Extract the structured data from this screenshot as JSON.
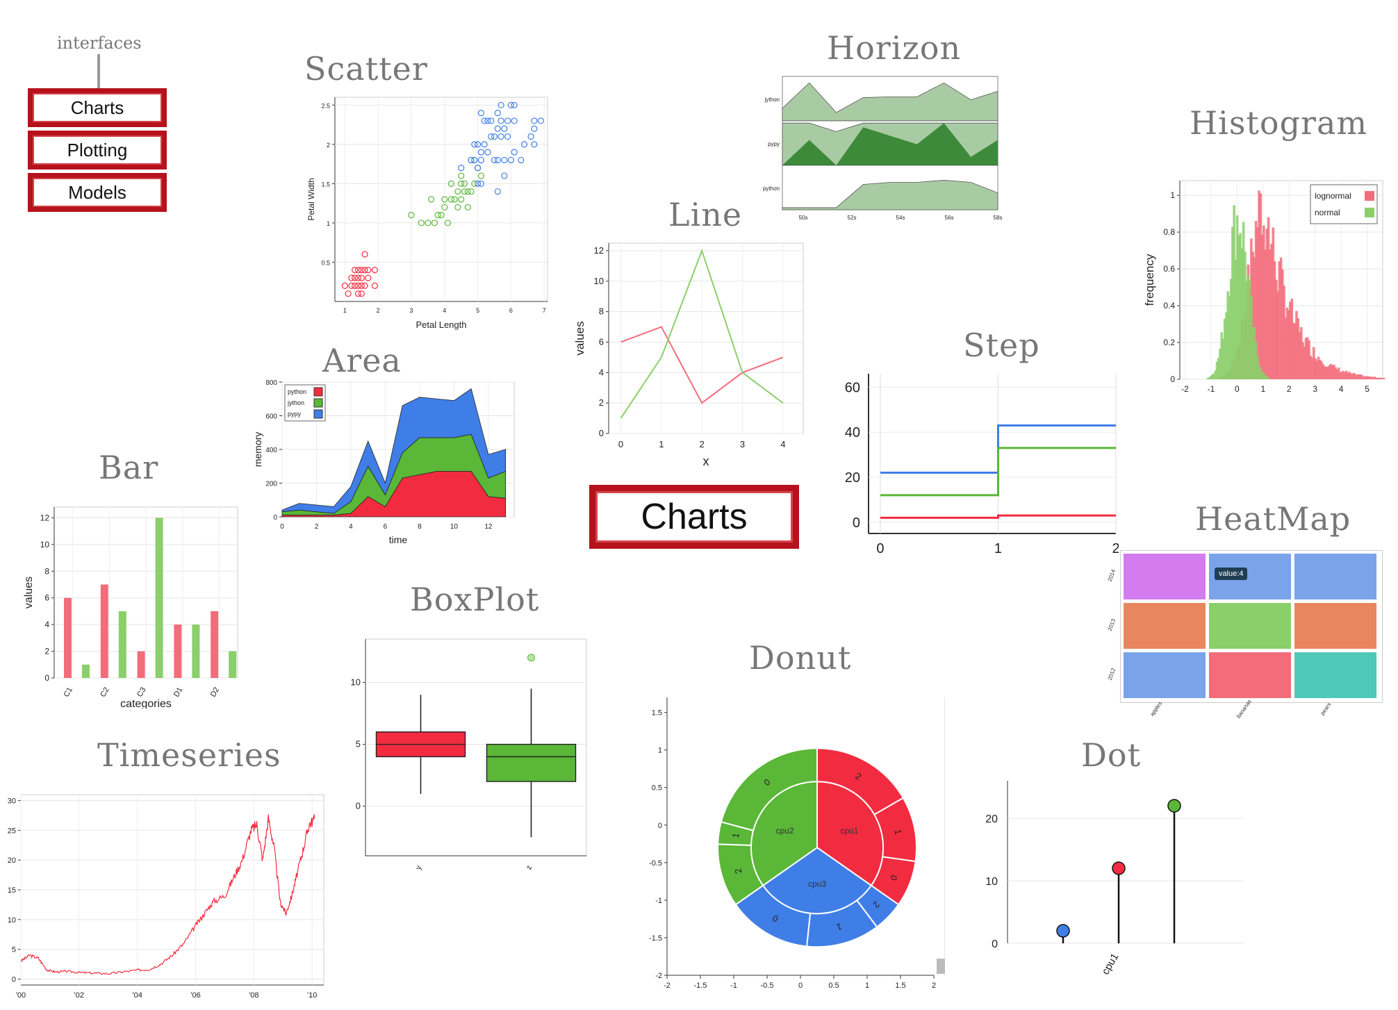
{
  "nav": {
    "label": "interfaces",
    "items": [
      "Charts",
      "Plotting",
      "Models"
    ]
  },
  "center_label": "Charts",
  "titles": {
    "scatter": "Scatter",
    "horizon": "Horizon",
    "histogram": "Histogram",
    "line": "Line",
    "area": "Area",
    "step": "Step",
    "bar": "Bar",
    "heatmap": "HeatMap",
    "boxplot": "BoxPlot",
    "donut": "Donut",
    "timeseries": "Timeseries",
    "dot": "Dot"
  },
  "colors": {
    "red": "#f22c40",
    "green": "#5ab738",
    "blue": "#407ee7",
    "brand": "#b5121b"
  },
  "chart_data": [
    {
      "id": "scatter",
      "type": "scatter",
      "xlabel": "Petal Length",
      "ylabel": "Petal Width",
      "xlim": [
        0.7,
        7.1
      ],
      "ylim": [
        0,
        2.6
      ],
      "xticks": [
        "1",
        "2",
        "3",
        "4",
        "5",
        "6",
        "7"
      ],
      "yticks": [
        "0.5",
        "1",
        "1.5",
        "2",
        "2.5"
      ],
      "series": [
        {
          "color": "#f22c40",
          "points": [
            [
              1.4,
              0.2
            ],
            [
              1.3,
              0.2
            ],
            [
              1.5,
              0.2
            ],
            [
              1.4,
              0.3
            ],
            [
              1.7,
              0.4
            ],
            [
              1.5,
              0.1
            ],
            [
              1.6,
              0.2
            ],
            [
              1.4,
              0.1
            ],
            [
              1.1,
              0.1
            ],
            [
              1.2,
              0.2
            ],
            [
              1.5,
              0.4
            ],
            [
              1.3,
              0.4
            ],
            [
              1.7,
              0.3
            ],
            [
              1.9,
              0.4
            ],
            [
              1.6,
              0.6
            ],
            [
              1.5,
              0.3
            ],
            [
              1.0,
              0.2
            ],
            [
              1.6,
              0.4
            ],
            [
              1.9,
              0.2
            ],
            [
              1.4,
              0.4
            ],
            [
              1.3,
              0.3
            ],
            [
              1.2,
              0.3
            ]
          ]
        },
        {
          "color": "#5ab738",
          "points": [
            [
              4.7,
              1.4
            ],
            [
              4.5,
              1.5
            ],
            [
              4.9,
              1.5
            ],
            [
              4.0,
              1.3
            ],
            [
              4.6,
              1.5
            ],
            [
              3.3,
              1.0
            ],
            [
              4.4,
              1.4
            ],
            [
              3.9,
              1.1
            ],
            [
              3.5,
              1.0
            ],
            [
              4.2,
              1.5
            ],
            [
              3.6,
              1.3
            ],
            [
              4.7,
              1.2
            ],
            [
              4.1,
              1.0
            ],
            [
              3.0,
              1.1
            ],
            [
              4.5,
              1.3
            ],
            [
              4.8,
              1.8
            ],
            [
              4.3,
              1.3
            ],
            [
              5.0,
              1.7
            ],
            [
              3.8,
              1.1
            ],
            [
              3.7,
              1.0
            ],
            [
              5.1,
              1.6
            ],
            [
              4.4,
              1.2
            ],
            [
              4.6,
              1.4
            ],
            [
              4.0,
              1.2
            ],
            [
              4.9,
              1.8
            ],
            [
              4.2,
              1.3
            ],
            [
              4.5,
              1.6
            ],
            [
              4.8,
              1.4
            ]
          ]
        },
        {
          "color": "#407ee7",
          "points": [
            [
              6.0,
              2.5
            ],
            [
              5.1,
              1.9
            ],
            [
              5.9,
              2.1
            ],
            [
              5.6,
              1.8
            ],
            [
              5.8,
              2.2
            ],
            [
              6.6,
              2.1
            ],
            [
              4.5,
              1.7
            ],
            [
              6.3,
              1.8
            ],
            [
              6.1,
              2.5
            ],
            [
              5.3,
              1.9
            ],
            [
              5.5,
              2.1
            ],
            [
              5.0,
              2.0
            ],
            [
              5.1,
              2.4
            ],
            [
              5.3,
              2.3
            ],
            [
              6.7,
              2.2
            ],
            [
              6.9,
              2.3
            ],
            [
              5.7,
              2.3
            ],
            [
              4.9,
              2.0
            ],
            [
              6.7,
              2.0
            ],
            [
              5.4,
              2.1
            ],
            [
              5.6,
              2.4
            ],
            [
              4.8,
              1.8
            ],
            [
              5.6,
              1.4
            ],
            [
              6.1,
              2.3
            ],
            [
              5.1,
              1.5
            ],
            [
              5.9,
              2.3
            ],
            [
              5.7,
              2.5
            ],
            [
              5.2,
              2.0
            ],
            [
              6.0,
              1.8
            ],
            [
              5.8,
              1.6
            ],
            [
              6.4,
              2.0
            ],
            [
              5.5,
              1.8
            ],
            [
              6.1,
              1.9
            ],
            [
              5.0,
              1.5
            ],
            [
              6.7,
              2.3
            ],
            [
              5.8,
              1.8
            ],
            [
              5.2,
              2.3
            ],
            [
              5.4,
              2.3
            ],
            [
              5.6,
              2.2
            ],
            [
              5.0,
              1.7
            ],
            [
              4.9,
              1.8
            ],
            [
              5.1,
              1.8
            ],
            [
              5.7,
              2.1
            ]
          ]
        }
      ]
    },
    {
      "id": "horizon",
      "type": "area",
      "rows": [
        "jython",
        "pypy",
        "python"
      ],
      "xticks": [
        "50s",
        "52s",
        "54s",
        "56s",
        "58s"
      ],
      "series": [
        {
          "name": "jython",
          "values": [
            0.3,
            0.9,
            0.2,
            0.55,
            0.57,
            0.57,
            0.9,
            0.5,
            0.7
          ]
        },
        {
          "name": "pypy",
          "values": [
            1.0,
            1.6,
            0.8,
            1.9,
            1.7,
            1.5,
            2.0,
            1.2,
            1.6
          ]
        },
        {
          "name": "python",
          "values": [
            0.05,
            0.05,
            0.05,
            0.6,
            0.65,
            0.65,
            0.7,
            0.65,
            0.4
          ]
        }
      ]
    },
    {
      "id": "histogram",
      "type": "bar",
      "ylabel": "frequency",
      "xticks": [
        "-2",
        "-1",
        "0",
        "1",
        "2",
        "3",
        "4",
        "5"
      ],
      "yticks": [
        "0",
        "0.2",
        "0.4",
        "0.6",
        "0.8",
        "1"
      ],
      "xlim": [
        -2.2,
        5.6
      ],
      "ylim": [
        0,
        1.08
      ],
      "legend": "top-right",
      "series": [
        {
          "name": "lognormal",
          "color": "#f26c7a",
          "center": 1.0,
          "spread": 0.55,
          "peak": 0.97
        },
        {
          "name": "normal",
          "color": "#8acf6a",
          "center": 0.0,
          "spread": 0.38,
          "peak": 0.88
        }
      ]
    },
    {
      "id": "line",
      "type": "line",
      "xlabel": "x",
      "ylabel": "values",
      "x": [
        0,
        1,
        2,
        3,
        4
      ],
      "xlim": [
        -0.3,
        4.5
      ],
      "ylim": [
        0,
        12.5
      ],
      "xticks": [
        "0",
        "1",
        "2",
        "3",
        "4"
      ],
      "yticks": [
        "0",
        "2",
        "4",
        "6",
        "8",
        "10",
        "12"
      ],
      "series": [
        {
          "color": "#f26c7a",
          "values": [
            6,
            7,
            2,
            4,
            5
          ]
        },
        {
          "color": "#8acf6a",
          "values": [
            1,
            5,
            12,
            4,
            2
          ]
        }
      ]
    },
    {
      "id": "area",
      "type": "area",
      "xlabel": "time",
      "ylabel": "memory",
      "x": [
        0,
        1,
        2,
        3,
        4,
        5,
        6,
        7,
        8,
        9,
        10,
        11,
        12,
        13
      ],
      "xlim": [
        0,
        13.5
      ],
      "ylim": [
        0,
        800
      ],
      "xticks": [
        "0",
        "2",
        "4",
        "6",
        "8",
        "10",
        "12"
      ],
      "yticks": [
        "0",
        "200",
        "400",
        "600",
        "800"
      ],
      "legend": "top-left",
      "series": [
        {
          "name": "python",
          "color": "#f22c40",
          "values": [
            10,
            10,
            10,
            10,
            20,
            120,
            60,
            230,
            250,
            270,
            270,
            270,
            120,
            110
          ]
        },
        {
          "name": "jython",
          "color": "#5ab738",
          "values": [
            20,
            30,
            20,
            10,
            70,
            180,
            70,
            150,
            220,
            200,
            200,
            220,
            110,
            160
          ]
        },
        {
          "name": "pypy",
          "color": "#407ee7",
          "values": [
            10,
            40,
            40,
            40,
            90,
            150,
            70,
            280,
            240,
            230,
            220,
            270,
            140,
            130
          ]
        }
      ]
    },
    {
      "id": "step",
      "type": "line",
      "xlim": [
        -0.1,
        2
      ],
      "ylim": [
        -5,
        66
      ],
      "xticks": [
        "0",
        "1",
        "2"
      ],
      "yticks": [
        "0",
        "20",
        "40",
        "60"
      ],
      "series": [
        {
          "color": "#407ee7",
          "values": [
            22,
            43,
            43
          ]
        },
        {
          "color": "#5ab738",
          "values": [
            12,
            33,
            33
          ]
        },
        {
          "color": "#f22c40",
          "values": [
            2,
            3,
            3
          ]
        }
      ]
    },
    {
      "id": "bar",
      "type": "bar",
      "xlabel": "categories",
      "ylabel": "values",
      "categories": [
        "C1",
        "C2",
        "C3",
        "D1",
        "D2"
      ],
      "ylim": [
        0,
        12.8
      ],
      "yticks": [
        "0",
        "2",
        "4",
        "6",
        "8",
        "10",
        "12"
      ],
      "series": [
        {
          "color": "#f26c7a",
          "values": [
            6,
            7,
            2,
            4,
            5
          ]
        },
        {
          "color": "#8acf6a",
          "values": [
            1,
            5,
            12,
            4,
            2
          ]
        }
      ]
    },
    {
      "id": "heatmap",
      "type": "heatmap",
      "x": [
        "apples",
        "bananas",
        "pears"
      ],
      "y": [
        "2014",
        "2013",
        "2012"
      ],
      "tooltip": "value:4",
      "cells": [
        [
          "#d57bf0",
          "#7ba3ea",
          "#7ba3ea"
        ],
        [
          "#e8875f",
          "#8acf6a",
          "#e8875f"
        ],
        [
          "#7ba3ea",
          "#f26c7a",
          "#4ec8b8"
        ]
      ]
    },
    {
      "id": "boxplot",
      "type": "bar",
      "categories": [
        "y",
        "z"
      ],
      "ylim": [
        -4,
        13.5
      ],
      "yticks": [
        "0",
        "5",
        "10"
      ],
      "series": [
        {
          "name": "y",
          "color": "#f22c40",
          "low": 1,
          "q1": 4,
          "median": 5,
          "q3": 6,
          "high": 9
        },
        {
          "name": "z",
          "color": "#5ab738",
          "low": -2.5,
          "q1": 2,
          "median": 4,
          "q3": 5,
          "high": 9.5,
          "outlier": 12
        }
      ]
    },
    {
      "id": "donut",
      "type": "pie",
      "xlim": [
        -2,
        2
      ],
      "ylim": [
        -2,
        1.7
      ],
      "xticks": [
        "-2",
        "-1.5",
        "-1",
        "-0.5",
        "0",
        "0.5",
        "1",
        "1.5",
        "2"
      ],
      "yticks": [
        "-2",
        "-1.5",
        "-1",
        "-0.5",
        "0",
        "0.5",
        "1",
        "1.5"
      ],
      "inner": [
        {
          "name": "cpu1",
          "color": "#f22c40",
          "start": 0,
          "end": 125
        },
        {
          "name": "cpu3",
          "color": "#407ee7",
          "start": 125,
          "end": 235
        },
        {
          "name": "cpu2",
          "color": "#5ab738",
          "start": 235,
          "end": 360
        }
      ],
      "outer": [
        {
          "label": "2",
          "color": "#f22c40",
          "start": 0,
          "end": 60
        },
        {
          "label": "1",
          "color": "#f22c40",
          "start": 60,
          "end": 98
        },
        {
          "label": "0",
          "color": "#f22c40",
          "start": 98,
          "end": 125
        },
        {
          "label": "2",
          "color": "#407ee7",
          "start": 125,
          "end": 143
        },
        {
          "label": "1",
          "color": "#407ee7",
          "start": 143,
          "end": 186
        },
        {
          "label": "0",
          "color": "#407ee7",
          "start": 186,
          "end": 235
        },
        {
          "label": "2",
          "color": "#5ab738",
          "start": 235,
          "end": 272
        },
        {
          "label": "1",
          "color": "#5ab738",
          "start": 272,
          "end": 285
        },
        {
          "label": "0",
          "color": "#5ab738",
          "start": 285,
          "end": 360
        }
      ]
    },
    {
      "id": "timeseries",
      "type": "line",
      "xlim": [
        2000,
        2010.4
      ],
      "ylim": [
        -1,
        31
      ],
      "xticks": [
        "'00",
        "'02",
        "'04",
        "'06",
        "'08",
        "'10"
      ],
      "yticks": [
        "0",
        "5",
        "10",
        "15",
        "20",
        "25",
        "30"
      ],
      "series": [
        {
          "color": "#f22c40",
          "x": [
            2000,
            2000.3,
            2000.6,
            2000.9,
            2001.2,
            2001.6,
            2002,
            2002.5,
            2003,
            2003.5,
            2004,
            2004.4,
            2004.8,
            2005.2,
            2005.6,
            2006,
            2006.3,
            2006.6,
            2007,
            2007.3,
            2007.6,
            2007.9,
            2008.1,
            2008.3,
            2008.5,
            2008.7,
            2008.9,
            2009.1,
            2009.3,
            2009.5,
            2009.7,
            2009.9,
            2010.1
          ],
          "values": [
            3,
            4,
            3.5,
            1.5,
            1.2,
            1.3,
            1.1,
            1,
            0.9,
            1.2,
            1.5,
            1.6,
            2.5,
            4,
            6,
            9,
            11,
            13,
            14,
            17,
            20,
            25,
            26,
            20,
            27,
            22,
            13,
            11,
            14,
            18,
            22,
            26,
            27
          ]
        }
      ]
    },
    {
      "id": "dot",
      "type": "scatter",
      "categories": [
        "cpu1"
      ],
      "ylim": [
        0,
        26
      ],
      "yticks": [
        "0",
        "10",
        "20"
      ],
      "series": [
        {
          "color": "#407ee7",
          "value": 2
        },
        {
          "color": "#f22c40",
          "value": 12
        },
        {
          "color": "#5ab738",
          "value": 22
        }
      ]
    }
  ]
}
